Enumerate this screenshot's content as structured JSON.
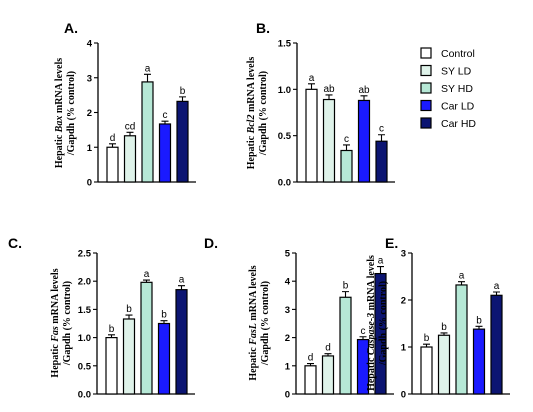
{
  "legend": {
    "items": [
      {
        "label": "Control",
        "color": "#ffffff"
      },
      {
        "label": "SY LD",
        "color": "#dff3ea"
      },
      {
        "label": "SY HD",
        "color": "#b6e8d6"
      },
      {
        "label": "Car LD",
        "color": "#1a1aff"
      },
      {
        "label": "Car HD",
        "color": "#0c1572"
      }
    ]
  },
  "chart_data": [
    {
      "type": "bar",
      "panel": "A.",
      "ylabel_lines": [
        [
          {
            "t": "Hepatic ",
            "i": false
          },
          {
            "t": "Bax",
            "i": true
          },
          {
            "t": " mRNA levels",
            "i": false
          }
        ],
        [
          {
            "t": "/Gapdh (% control)",
            "i": false
          }
        ]
      ],
      "yticks": [
        "0",
        "1",
        "2",
        "3",
        "4"
      ],
      "ylim": [
        0,
        4
      ],
      "categories": [
        "Control",
        "SY LD",
        "SY HD",
        "Car LD",
        "Car HD"
      ],
      "values": [
        1.0,
        1.33,
        2.88,
        1.67,
        2.32
      ],
      "errors": [
        0.1,
        0.1,
        0.22,
        0.08,
        0.13
      ],
      "letters": [
        "d",
        "cd",
        "a",
        "c",
        "b"
      ]
    },
    {
      "type": "bar",
      "panel": "B.",
      "ylabel_lines": [
        [
          {
            "t": "Hepatic ",
            "i": false
          },
          {
            "t": "Bcl2",
            "i": true
          },
          {
            "t": " mRNA levels",
            "i": false
          }
        ],
        [
          {
            "t": "/Gapdh (% control)",
            "i": false
          }
        ]
      ],
      "yticks": [
        "0.0",
        "0.5",
        "1.0",
        "1.5"
      ],
      "ylim": [
        0,
        1.5
      ],
      "categories": [
        "Control",
        "SY LD",
        "SY HD",
        "Car LD",
        "Car HD"
      ],
      "values": [
        1.0,
        0.89,
        0.34,
        0.88,
        0.44
      ],
      "errors": [
        0.06,
        0.05,
        0.06,
        0.05,
        0.07
      ],
      "letters": [
        "a",
        "ab",
        "c",
        "ab",
        "c"
      ]
    },
    {
      "type": "bar",
      "panel": "C.",
      "ylabel_lines": [
        [
          {
            "t": "Hepatic ",
            "i": false
          },
          {
            "t": "Fas",
            "i": true
          },
          {
            "t": " mRNA levels",
            "i": false
          }
        ],
        [
          {
            "t": "/Gapdh (% control)",
            "i": false
          }
        ]
      ],
      "yticks": [
        "0.0",
        "0.5",
        "1.0",
        "1.5",
        "2.0",
        "2.5"
      ],
      "ylim": [
        0,
        2.5
      ],
      "categories": [
        "Control",
        "SY LD",
        "SY HD",
        "Car LD",
        "Car HD"
      ],
      "values": [
        1.0,
        1.33,
        1.98,
        1.25,
        1.85
      ],
      "errors": [
        0.05,
        0.07,
        0.04,
        0.05,
        0.07
      ],
      "letters": [
        "b",
        "b",
        "a",
        "b",
        "a"
      ]
    },
    {
      "type": "bar",
      "panel": "D.",
      "ylabel_lines": [
        [
          {
            "t": "Hepatic ",
            "i": false
          },
          {
            "t": "FasL",
            "i": true
          },
          {
            "t": " mRNA levels",
            "i": false
          }
        ],
        [
          {
            "t": "/Gapdh (% control)",
            "i": false
          }
        ]
      ],
      "yticks": [
        "0",
        "1",
        "2",
        "3",
        "4",
        "5"
      ],
      "ylim": [
        0,
        5
      ],
      "categories": [
        "Control",
        "SY LD",
        "SY HD",
        "Car LD",
        "Car HD"
      ],
      "values": [
        1.0,
        1.35,
        3.43,
        1.93,
        4.27
      ],
      "errors": [
        0.08,
        0.08,
        0.2,
        0.1,
        0.25
      ],
      "letters": [
        "d",
        "d",
        "b",
        "c",
        "a"
      ]
    },
    {
      "type": "bar",
      "panel": "E.",
      "ylabel_lines": [
        [
          {
            "t": "Hepatic ",
            "i": false
          },
          {
            "t": "Caspase-3",
            "i": true
          },
          {
            "t": " mRNA levels",
            "i": false
          }
        ],
        [
          {
            "t": "/Gapdh (% control)",
            "i": false
          }
        ]
      ],
      "yticks": [
        "0",
        "1",
        "2",
        "3"
      ],
      "ylim": [
        0,
        3
      ],
      "categories": [
        "Control",
        "SY LD",
        "SY HD",
        "Car LD",
        "Car HD"
      ],
      "values": [
        1.0,
        1.25,
        2.32,
        1.38,
        2.1
      ],
      "errors": [
        0.06,
        0.05,
        0.07,
        0.06,
        0.07
      ],
      "letters": [
        "b",
        "b",
        "a",
        "b",
        "a"
      ]
    }
  ]
}
